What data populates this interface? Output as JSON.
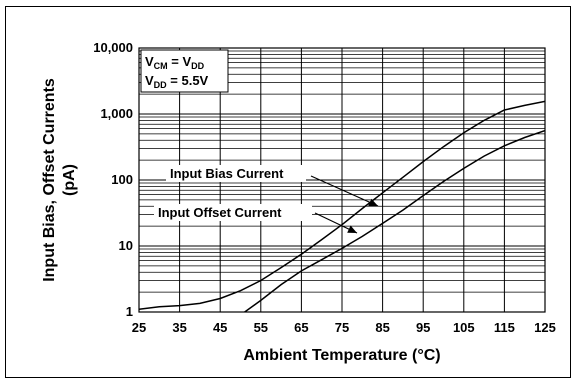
{
  "chart_data": {
    "type": "line",
    "xlabel": "Ambient Temperature (°C)",
    "ylabel_line1": "Input Bias, Offset Currents",
    "ylabel_line2": "(pA)",
    "xlim": [
      25,
      125
    ],
    "ylim": [
      1,
      10000
    ],
    "y_scale": "log",
    "x_ticks": [
      25,
      35,
      45,
      55,
      65,
      75,
      85,
      95,
      105,
      115,
      125
    ],
    "y_ticks": [
      {
        "value": 1,
        "label": "1"
      },
      {
        "value": 10,
        "label": "10"
      },
      {
        "value": 100,
        "label": "100"
      },
      {
        "value": 1000,
        "label": "1,000"
      },
      {
        "value": 10000,
        "label": "10,000"
      }
    ],
    "grid": true,
    "conditions": {
      "line1": {
        "main": "V",
        "sub": "CM",
        "eq": " = V",
        "sub2": "DD",
        "rest": ""
      },
      "line2": {
        "main": "V",
        "sub": "DD",
        "rest": " = 5.5V"
      }
    },
    "series": [
      {
        "name": "Input Bias Current",
        "x": [
          25,
          30,
          35,
          40,
          45,
          50,
          55,
          60,
          65,
          70,
          75,
          80,
          85,
          90,
          95,
          100,
          105,
          110,
          115,
          120,
          125
        ],
        "y": [
          1.1,
          1.2,
          1.25,
          1.35,
          1.6,
          2.1,
          3.0,
          4.7,
          7.5,
          12.5,
          21,
          37,
          64,
          110,
          190,
          320,
          520,
          800,
          1150,
          1350,
          1550
        ]
      },
      {
        "name": "Input Offset Current",
        "x": [
          50,
          55,
          60,
          65,
          70,
          75,
          80,
          85,
          90,
          95,
          100,
          105,
          110,
          115,
          120,
          125
        ],
        "y": [
          0.9,
          1.5,
          2.6,
          4.2,
          6.2,
          9.2,
          14,
          22,
          35,
          58,
          95,
          150,
          230,
          330,
          440,
          560
        ]
      }
    ]
  }
}
